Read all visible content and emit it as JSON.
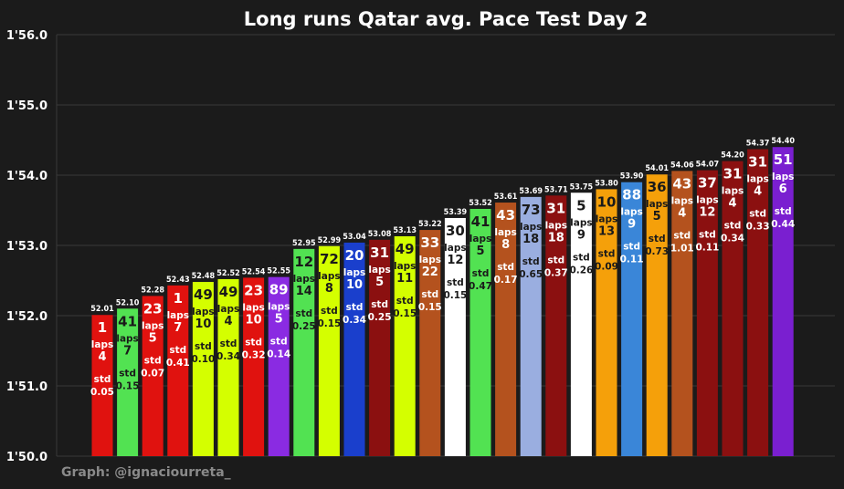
{
  "chart_data": {
    "type": "bar",
    "title": "Long runs Qatar avg. Pace Test Day 2",
    "credit": "Graph: @ignaciourreta_",
    "ylim": [
      110.0,
      116.0
    ],
    "ytick_values": [
      110.0,
      111.0,
      112.0,
      113.0,
      114.0,
      115.0,
      116.0
    ],
    "ytick_labels": [
      "1'50.0",
      "1'51.0",
      "1'52.0",
      "1'53.0",
      "1'54.0",
      "1'55.0",
      "1'56.0"
    ],
    "laps_label": "laps",
    "std_label": "std",
    "grid": true,
    "bars": [
      {
        "driver": "1",
        "pace": 112.01,
        "label": "52.01",
        "laps": "4",
        "std": "0.05",
        "color": "#e0120f",
        "text_color": "#ffffff"
      },
      {
        "driver": "41",
        "pace": 112.1,
        "label": "52.10",
        "laps": "7",
        "std": "0.15",
        "color": "#52e252",
        "text_color": "#1a1a1a"
      },
      {
        "driver": "23",
        "pace": 112.28,
        "label": "52.28",
        "laps": "5",
        "std": "0.07",
        "color": "#e0120f",
        "text_color": "#ffffff"
      },
      {
        "driver": "1",
        "pace": 112.43,
        "label": "52.43",
        "laps": "7",
        "std": "0.41",
        "color": "#e0120f",
        "text_color": "#ffffff"
      },
      {
        "driver": "49",
        "pace": 112.48,
        "label": "52.48",
        "laps": "10",
        "std": "0.10",
        "color": "#d4ff00",
        "text_color": "#1a1a1a"
      },
      {
        "driver": "49",
        "pace": 112.52,
        "label": "52.52",
        "laps": "4",
        "std": "0.34",
        "color": "#d4ff00",
        "text_color": "#1a1a1a"
      },
      {
        "driver": "23",
        "pace": 112.54,
        "label": "52.54",
        "laps": "10",
        "std": "0.32",
        "color": "#e0120f",
        "text_color": "#ffffff"
      },
      {
        "driver": "89",
        "pace": 112.55,
        "label": "52.55",
        "laps": "5",
        "std": "0.14",
        "color": "#8a2be2",
        "text_color": "#ffffff"
      },
      {
        "driver": "12",
        "pace": 112.95,
        "label": "52.95",
        "laps": "14",
        "std": "0.25",
        "color": "#52e252",
        "text_color": "#1a1a1a"
      },
      {
        "driver": "72",
        "pace": 112.99,
        "label": "52.99",
        "laps": "8",
        "std": "0.15",
        "color": "#d4ff00",
        "text_color": "#1a1a1a"
      },
      {
        "driver": "20",
        "pace": 113.04,
        "label": "53.04",
        "laps": "10",
        "std": "0.34",
        "color": "#1a3fcc",
        "text_color": "#ffffff"
      },
      {
        "driver": "31",
        "pace": 113.08,
        "label": "53.08",
        "laps": "5",
        "std": "0.25",
        "color": "#8b1010",
        "text_color": "#ffffff"
      },
      {
        "driver": "49",
        "pace": 113.13,
        "label": "53.13",
        "laps": "11",
        "std": "0.15",
        "color": "#d4ff00",
        "text_color": "#1a1a1a"
      },
      {
        "driver": "33",
        "pace": 113.22,
        "label": "53.22",
        "laps": "22",
        "std": "0.15",
        "color": "#b4521e",
        "text_color": "#ffffff"
      },
      {
        "driver": "30",
        "pace": 113.39,
        "label": "53.39",
        "laps": "12",
        "std": "0.15",
        "color": "#ffffff",
        "text_color": "#1a1a1a"
      },
      {
        "driver": "41",
        "pace": 113.52,
        "label": "53.52",
        "laps": "5",
        "std": "0.47",
        "color": "#52e252",
        "text_color": "#1a1a1a"
      },
      {
        "driver": "43",
        "pace": 113.61,
        "label": "53.61",
        "laps": "8",
        "std": "0.17",
        "color": "#b4521e",
        "text_color": "#ffffff"
      },
      {
        "driver": "73",
        "pace": 113.69,
        "label": "53.69",
        "laps": "18",
        "std": "0.65",
        "color": "#9aaee0",
        "text_color": "#1a1a1a"
      },
      {
        "driver": "31",
        "pace": 113.71,
        "label": "53.71",
        "laps": "18",
        "std": "0.37",
        "color": "#8b1010",
        "text_color": "#ffffff"
      },
      {
        "driver": "5",
        "pace": 113.75,
        "label": "53.75",
        "laps": "9",
        "std": "0.26",
        "color": "#ffffff",
        "text_color": "#1a1a1a"
      },
      {
        "driver": "10",
        "pace": 113.8,
        "label": "53.80",
        "laps": "13",
        "std": "0.09",
        "color": "#f5a00a",
        "text_color": "#1a1a1a"
      },
      {
        "driver": "88",
        "pace": 113.9,
        "label": "53.90",
        "laps": "9",
        "std": "0.11",
        "color": "#3a86d8",
        "text_color": "#ffffff"
      },
      {
        "driver": "36",
        "pace": 114.01,
        "label": "54.01",
        "laps": "5",
        "std": "0.73",
        "color": "#f5a00a",
        "text_color": "#1a1a1a"
      },
      {
        "driver": "43",
        "pace": 114.06,
        "label": "54.06",
        "laps": "4",
        "std": "1.01",
        "color": "#b4521e",
        "text_color": "#ffffff"
      },
      {
        "driver": "37",
        "pace": 114.07,
        "label": "54.07",
        "laps": "12",
        "std": "0.11",
        "color": "#8b1010",
        "text_color": "#ffffff"
      },
      {
        "driver": "31",
        "pace": 114.2,
        "label": "54.20",
        "laps": "4",
        "std": "0.34",
        "color": "#8b1010",
        "text_color": "#ffffff"
      },
      {
        "driver": "31",
        "pace": 114.37,
        "label": "54.37",
        "laps": "4",
        "std": "0.33",
        "color": "#8b1010",
        "text_color": "#ffffff"
      },
      {
        "driver": "51",
        "pace": 114.4,
        "label": "54.40",
        "laps": "6",
        "std": "0.44",
        "color": "#7a1fd0",
        "text_color": "#ffffff"
      }
    ]
  },
  "colors": {
    "background": "#1b1b1b",
    "grid": "#3a3a3a",
    "axis_text": "#ffffff",
    "credit_text": "#8a8a8a"
  }
}
